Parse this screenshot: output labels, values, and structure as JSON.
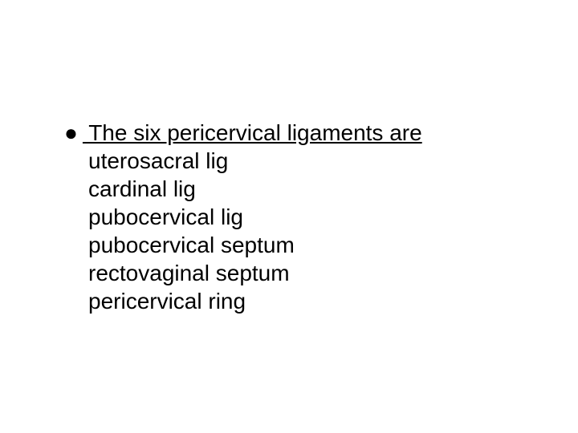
{
  "slide": {
    "background_color": "#ffffff",
    "text_color": "#000000",
    "heading_fontsize": 28,
    "item_fontsize": 28,
    "heading_underline": true,
    "bullet_symbol": "●",
    "heading": " The six pericervical ligaments are",
    "items": [
      "uterosacral lig",
      "cardinal lig",
      "pubocervical lig",
      "pubocervical septum",
      "rectovaginal septum",
      "pericervical ring"
    ]
  }
}
